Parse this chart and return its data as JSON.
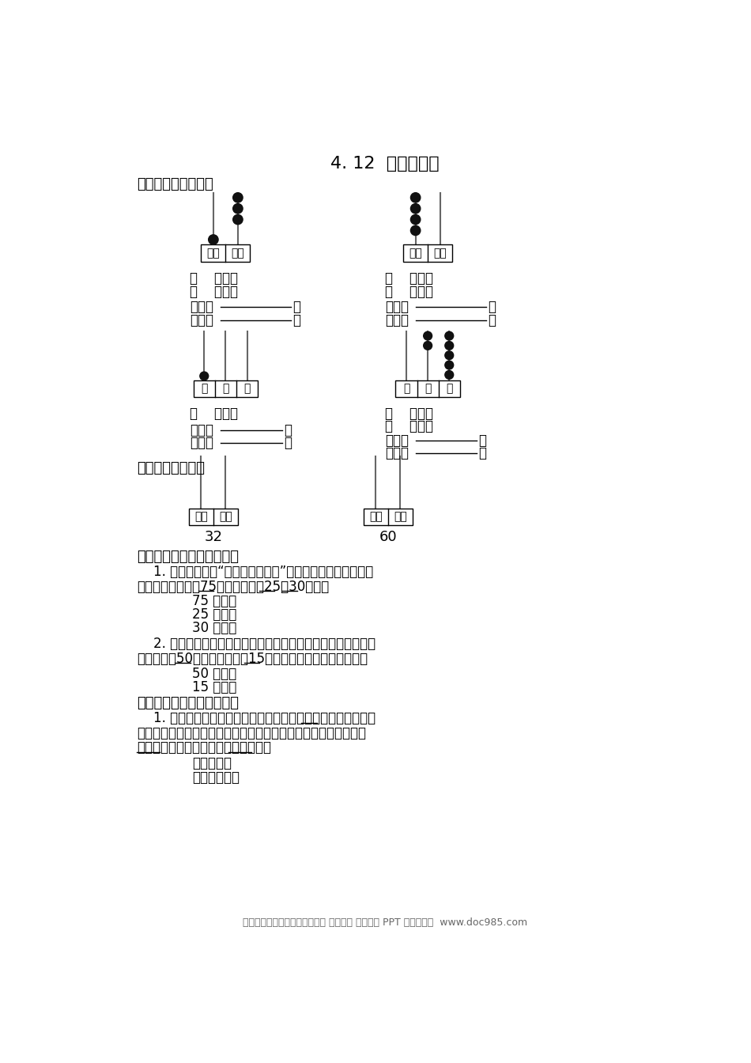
{
  "title": "4. 12  读数、写数",
  "bg_color": "#ffffff",
  "text_color": "#000000",
  "section1_title": "一、看珠子填一填。",
  "section2_title": "二、看数画珠子。",
  "section3_title": "三、读出下面横线上的数。",
  "section4_title": "四、写出下面横线上的数。",
  "footer": "小学、初中、高中各种试卷真题 知识归纳 文案合同 PPT 等免费下载  www.doc985.com",
  "abacus5_num": "32",
  "abacus6_num": "60"
}
